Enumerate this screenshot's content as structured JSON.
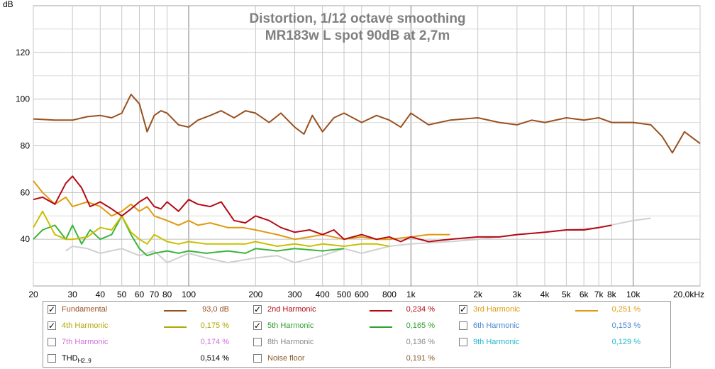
{
  "chart_data": {
    "type": "line",
    "title": "Distortion, 1/12 octave smoothing",
    "subtitle": "MR183w L spot 90dB at 2,7m",
    "ylabel": "dB",
    "xlabel": "",
    "x_scale": "log",
    "xlim": [
      20,
      20000
    ],
    "ylim": [
      20,
      140
    ],
    "grid": true,
    "x_ticks": [
      {
        "value": 20,
        "label": "20"
      },
      {
        "value": 30,
        "label": "30"
      },
      {
        "value": 40,
        "label": "40"
      },
      {
        "value": 50,
        "label": "50"
      },
      {
        "value": 60,
        "label": "60"
      },
      {
        "value": 70,
        "label": "70"
      },
      {
        "value": 80,
        "label": "80"
      },
      {
        "value": 100,
        "label": "100"
      },
      {
        "value": 200,
        "label": "200"
      },
      {
        "value": 300,
        "label": "300"
      },
      {
        "value": 400,
        "label": "400"
      },
      {
        "value": 500,
        "label": "500"
      },
      {
        "value": 600,
        "label": "600"
      },
      {
        "value": 800,
        "label": "800"
      },
      {
        "value": 1000,
        "label": "1k"
      },
      {
        "value": 2000,
        "label": "2k"
      },
      {
        "value": 3000,
        "label": "3k"
      },
      {
        "value": 4000,
        "label": "4k"
      },
      {
        "value": 5000,
        "label": "5k"
      },
      {
        "value": 6000,
        "label": "6k"
      },
      {
        "value": 7000,
        "label": "7k"
      },
      {
        "value": 8000,
        "label": "8k"
      },
      {
        "value": 10000,
        "label": "10k"
      },
      {
        "value": 20000,
        "label": "20,0kHz"
      }
    ],
    "y_ticks": [
      {
        "value": 40,
        "label": "40"
      },
      {
        "value": 60,
        "label": "60"
      },
      {
        "value": 80,
        "label": "80"
      },
      {
        "value": 100,
        "label": "100"
      },
      {
        "value": 120,
        "label": "120"
      }
    ],
    "series": [
      {
        "name": "Fundamental",
        "color": "#99501e",
        "x": [
          20,
          25,
          30,
          35,
          40,
          45,
          50,
          55,
          60,
          65,
          70,
          75,
          80,
          90,
          100,
          110,
          125,
          140,
          160,
          180,
          200,
          230,
          260,
          300,
          330,
          360,
          400,
          450,
          500,
          600,
          700,
          800,
          900,
          1000,
          1200,
          1500,
          2000,
          2500,
          3000,
          3500,
          4000,
          5000,
          6000,
          7000,
          8000,
          10000,
          12000,
          13500,
          15000,
          17000,
          20000
        ],
        "y": [
          91.5,
          91,
          91,
          92.5,
          93,
          92,
          94,
          102,
          98,
          86,
          93,
          95,
          94,
          89,
          88,
          91,
          93,
          95,
          92,
          95,
          94,
          90,
          94,
          88,
          85,
          93,
          86,
          92,
          94,
          90,
          93,
          91,
          88,
          94,
          89,
          91,
          92,
          90,
          89,
          91,
          90,
          92,
          91,
          92,
          90,
          90,
          89,
          84,
          77,
          86,
          81
        ]
      },
      {
        "name": "2nd Harmonic",
        "color": "#b40a14",
        "x": [
          20,
          22,
          25,
          28,
          30,
          33,
          36,
          40,
          45,
          50,
          55,
          60,
          65,
          70,
          75,
          80,
          90,
          100,
          110,
          125,
          140,
          160,
          180,
          200,
          230,
          260,
          300,
          350,
          400,
          450,
          500,
          600,
          700,
          800,
          900,
          1000,
          1200,
          1500,
          2000,
          2500,
          3000,
          4000,
          5000,
          6000,
          7000,
          8000
        ],
        "y": [
          57,
          58,
          55,
          64,
          67,
          62,
          54,
          56,
          53,
          50,
          53,
          56,
          58,
          54,
          53,
          56,
          52,
          57,
          55,
          54,
          56,
          48,
          47,
          50,
          48,
          45,
          43,
          44,
          42,
          44,
          40,
          42,
          40,
          41,
          39,
          41,
          39,
          40,
          41,
          41,
          42,
          43,
          44,
          44,
          45,
          46
        ]
      },
      {
        "name": "3rd Harmonic",
        "color": "#e09a10",
        "x": [
          20,
          22,
          25,
          28,
          30,
          35,
          40,
          45,
          50,
          55,
          60,
          65,
          70,
          80,
          90,
          100,
          110,
          125,
          150,
          175,
          200,
          250,
          300,
          350,
          400,
          500,
          600,
          700,
          800,
          1000,
          1200,
          1500
        ],
        "y": [
          65,
          60,
          55,
          58,
          54,
          56,
          54,
          50,
          52,
          55,
          52,
          54,
          50,
          48,
          46,
          48,
          46,
          47,
          45,
          45,
          44,
          42,
          40,
          41,
          42,
          40,
          41,
          40,
          40,
          41,
          42,
          42
        ]
      },
      {
        "name": "4th Harmonic",
        "color": "#c8c000",
        "x": [
          20,
          22,
          25,
          28,
          30,
          35,
          40,
          45,
          50,
          55,
          60,
          65,
          70,
          80,
          90,
          100,
          120,
          150,
          180,
          200,
          250,
          300,
          350,
          400,
          500,
          600,
          700,
          800
        ],
        "y": [
          45,
          52,
          42,
          40,
          40,
          41,
          45,
          44,
          50,
          43,
          40,
          38,
          42,
          39,
          38,
          39,
          38,
          38,
          38,
          39,
          37,
          38,
          37,
          38,
          37,
          38,
          38,
          37
        ]
      },
      {
        "name": "5th Harmonic",
        "color": "#3cb43c",
        "x": [
          20,
          22,
          25,
          28,
          30,
          33,
          36,
          40,
          45,
          50,
          55,
          60,
          65,
          70,
          80,
          90,
          100,
          120,
          150,
          180,
          200,
          250,
          300,
          400,
          500
        ],
        "y": [
          40,
          44,
          46,
          40,
          46,
          38,
          44,
          40,
          42,
          50,
          42,
          36,
          33,
          34,
          35,
          34,
          35,
          34,
          35,
          34,
          36,
          35,
          36,
          35,
          36
        ]
      },
      {
        "name": "Noise floor",
        "color": "#d0d0d0",
        "x": [
          28,
          30,
          35,
          40,
          50,
          60,
          70,
          80,
          100,
          120,
          150,
          200,
          250,
          300,
          400,
          500,
          600,
          800,
          1000,
          1500,
          2000,
          3000,
          4000,
          5000,
          7000,
          10000,
          12000
        ],
        "y": [
          35,
          37,
          36,
          34,
          36,
          33,
          35,
          30,
          34,
          32,
          30,
          32,
          33,
          30,
          33,
          36,
          34,
          37,
          38,
          39,
          40,
          42,
          43,
          44,
          45,
          48,
          49
        ]
      }
    ]
  },
  "legend": [
    {
      "label": "Fundamental",
      "checked": true,
      "value": "93,0 dB",
      "color": "#99501e",
      "show_line": true
    },
    {
      "label": "2nd Harmonic",
      "checked": true,
      "value": "0,234 %",
      "color": "#b40a14",
      "show_line": true
    },
    {
      "label": "3rd Harmonic",
      "checked": true,
      "value": "0,251 %",
      "color": "#e09a10",
      "show_line": true
    },
    {
      "label": "4th Harmonic",
      "checked": true,
      "value": "0,175 %",
      "color": "#b0a800",
      "show_line": true
    },
    {
      "label": "5th Harmonic",
      "checked": true,
      "value": "0,165 %",
      "color": "#2ea02e",
      "show_line": true
    },
    {
      "label": "6th Harmonic",
      "checked": false,
      "value": "0,153 %",
      "color": "#4a86d8",
      "show_line": false
    },
    {
      "label": "7th Harmonic",
      "checked": false,
      "value": "0,174 %",
      "color": "#d070d8",
      "show_line": false
    },
    {
      "label": "8th Harmonic",
      "checked": false,
      "value": "0,136 %",
      "color": "#8a8a8a",
      "show_line": false
    },
    {
      "label": "9th Harmonic",
      "checked": false,
      "value": "0,129 %",
      "color": "#20b8d0",
      "show_line": false
    },
    {
      "label": "THD",
      "label_sub": "H2..9",
      "checked": false,
      "value": "0,514 %",
      "color": "#000000",
      "show_line": false
    },
    {
      "label": "Noise floor",
      "checked": false,
      "value": "0,191 %",
      "color": "#8a5a2a",
      "show_line": false
    }
  ],
  "checkmark": "✓"
}
